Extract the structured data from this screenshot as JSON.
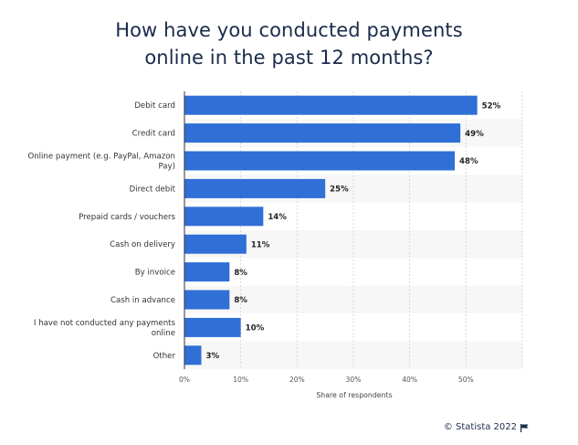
{
  "title_lines": [
    "How have you conducted payments",
    "online in the past 12 months?"
  ],
  "credit": "© Statista 2022",
  "chart_data": {
    "type": "bar",
    "orientation": "horizontal",
    "title": "How have you conducted payments online in the past 12 months?",
    "xlabel": "Share of respondents",
    "ylabel": "",
    "xlim": [
      0,
      60
    ],
    "grid": true,
    "categories": [
      [
        "Debit card"
      ],
      [
        "Credit card"
      ],
      [
        "Online payment (e.g. PayPal, Amazon",
        "Pay)"
      ],
      [
        "Direct debit"
      ],
      [
        "Prepaid cards / vouchers"
      ],
      [
        "Cash on delivery"
      ],
      [
        "By invoice"
      ],
      [
        "Cash in advance"
      ],
      [
        "I have not conducted any payments",
        "online"
      ],
      [
        "Other"
      ]
    ],
    "values": [
      52,
      49,
      48,
      25,
      14,
      11,
      8,
      8,
      10,
      3
    ],
    "value_labels": [
      "52%",
      "49%",
      "48%",
      "25%",
      "14%",
      "11%",
      "8%",
      "8%",
      "10%",
      "3%"
    ],
    "ticks": [
      0,
      10,
      20,
      30,
      40,
      50
    ],
    "tick_labels": [
      "0%",
      "10%",
      "20%",
      "30%",
      "40%",
      "50%"
    ],
    "bar_color": "#2f6fd6"
  }
}
